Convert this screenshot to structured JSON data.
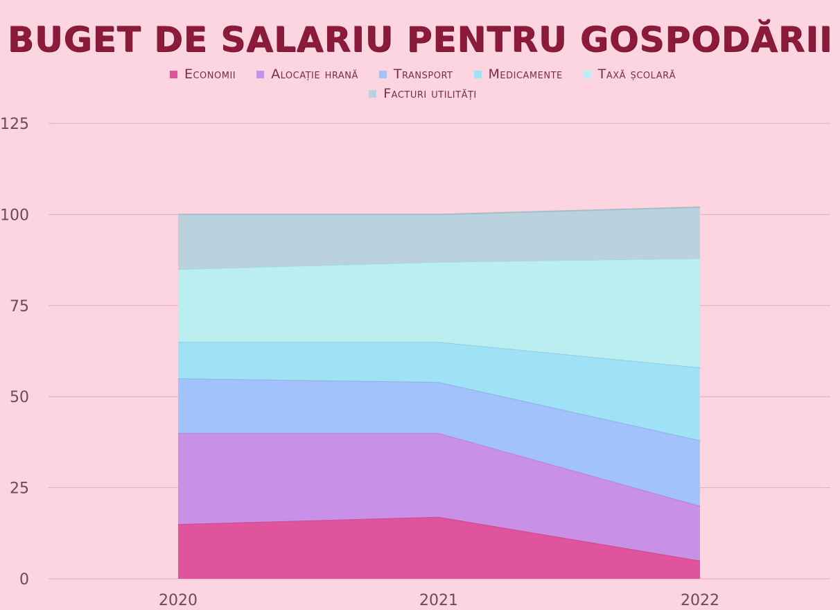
{
  "chart_data": {
    "type": "area",
    "stacked": true,
    "title": "BUGET DE SALARIU PENTRU GOSPODĂRII",
    "x": [
      "2020",
      "2021",
      "2022"
    ],
    "ylim": [
      0,
      125
    ],
    "yticks": [
      0,
      25,
      50,
      75,
      100,
      125
    ],
    "grid": true,
    "legend_position": "top",
    "series": [
      {
        "name": "Economii",
        "values": [
          15,
          17,
          5
        ],
        "color": "#e0539d"
      },
      {
        "name": "Alocație hrană",
        "values": [
          25,
          23,
          15
        ],
        "color": "#c990e8"
      },
      {
        "name": "Transport",
        "values": [
          15,
          14,
          18
        ],
        "color": "#a1c2fa"
      },
      {
        "name": "Medicamente",
        "values": [
          10,
          11,
          20
        ],
        "color": "#9fe2f5"
      },
      {
        "name": "Taxă școlară",
        "values": [
          20,
          22,
          30
        ],
        "color": "#baeef0"
      },
      {
        "name": "Facturi utilități",
        "values": [
          15,
          13,
          14
        ],
        "color": "#b9d2de"
      }
    ]
  }
}
